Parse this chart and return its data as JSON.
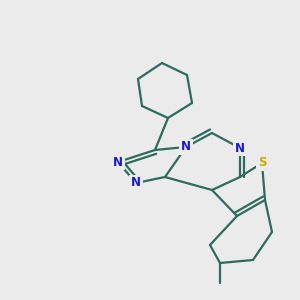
{
  "background_color": "#ebebeb",
  "bond_color": "#2d6b5e",
  "nitrogen_color": "#1a1acc",
  "sulfur_color": "#ccaa00",
  "atom_bg_color": "#ebebeb",
  "line_width": 1.6,
  "figsize": [
    3.0,
    3.0
  ],
  "dpi": 100,
  "xlim": [
    0,
    300
  ],
  "ylim": [
    0,
    300
  ]
}
